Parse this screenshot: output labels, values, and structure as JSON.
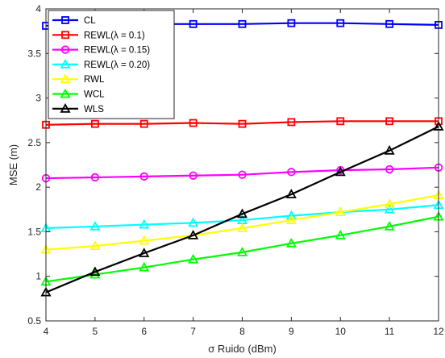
{
  "chart_data": {
    "type": "line",
    "title": "",
    "xlabel": "σ Ruido (dBm)",
    "ylabel": "MSE (m)",
    "xlim": [
      4,
      12
    ],
    "ylim": [
      0.5,
      4
    ],
    "xticks": [
      "4",
      "5",
      "6",
      "7",
      "8",
      "9",
      "10",
      "11",
      "12"
    ],
    "yticks": [
      "0.5",
      "1",
      "1.5",
      "2",
      "2.5",
      "3",
      "3.5",
      "4"
    ],
    "grid": false,
    "legend_position": "top-left",
    "x": [
      4,
      5,
      6,
      7,
      8,
      9,
      10,
      11,
      12
    ],
    "series": [
      {
        "name": "CL",
        "marker": "square",
        "color": "#0000ff",
        "values": [
          3.81,
          3.83,
          3.83,
          3.83,
          3.83,
          3.84,
          3.84,
          3.83,
          3.82
        ]
      },
      {
        "name": "REWL(λ = 0.1)",
        "marker": "square",
        "color": "#ff0000",
        "values": [
          2.7,
          2.71,
          2.71,
          2.72,
          2.71,
          2.73,
          2.74,
          2.74,
          2.74
        ]
      },
      {
        "name": "REWL(λ = 0.15)",
        "marker": "circle",
        "color": "#ff00ff",
        "values": [
          2.1,
          2.11,
          2.12,
          2.13,
          2.14,
          2.17,
          2.19,
          2.2,
          2.22
        ]
      },
      {
        "name": "REWL(λ = 0.20)",
        "marker": "triangle",
        "color": "#00ffff",
        "values": [
          1.54,
          1.56,
          1.58,
          1.6,
          1.63,
          1.68,
          1.72,
          1.75,
          1.8
        ]
      },
      {
        "name": "RWL",
        "marker": "triangle",
        "color": "#ffff00",
        "values": [
          1.3,
          1.34,
          1.4,
          1.46,
          1.54,
          1.63,
          1.72,
          1.81,
          1.91
        ]
      },
      {
        "name": "WCL",
        "marker": "triangle",
        "color": "#00ff00",
        "values": [
          0.94,
          1.02,
          1.1,
          1.19,
          1.27,
          1.37,
          1.46,
          1.56,
          1.67
        ]
      },
      {
        "name": "WLS",
        "marker": "triangle",
        "color": "#000000",
        "values": [
          0.82,
          1.05,
          1.26,
          1.46,
          1.7,
          1.92,
          2.17,
          2.41,
          2.68
        ]
      }
    ]
  }
}
